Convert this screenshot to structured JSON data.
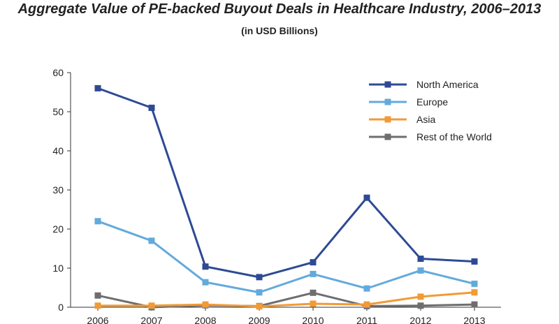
{
  "chart_data": {
    "type": "line",
    "title": "Aggregate Value of PE-backed Buyout Deals in Healthcare Industry, 2006–2013",
    "subtitle": "(in USD Billions)",
    "xlabel": "",
    "ylabel": "",
    "categories": [
      "2006",
      "2007",
      "2008",
      "2009",
      "2010",
      "2011",
      "2012",
      "2013"
    ],
    "y_ticks": [
      "0",
      "10",
      "20",
      "30",
      "40",
      "50",
      "60"
    ],
    "ylim": [
      0,
      60
    ],
    "grid": false,
    "legend_position": "top-right",
    "series": [
      {
        "name": "North America",
        "color": "#2e4a94",
        "marker": "square",
        "values": [
          56,
          51,
          10.4,
          7.7,
          11.5,
          28,
          12.4,
          11.7
        ]
      },
      {
        "name": "Europe",
        "color": "#63aadc",
        "marker": "square",
        "values": [
          22,
          17,
          6.4,
          3.8,
          8.5,
          4.8,
          9.4,
          6
        ]
      },
      {
        "name": "Asia",
        "color": "#f29a36",
        "marker": "square",
        "values": [
          0.4,
          0.4,
          0.7,
          0.2,
          0.9,
          0.7,
          2.7,
          3.8
        ]
      },
      {
        "name": "Rest of the World",
        "color": "#6e6e71",
        "marker": "square",
        "values": [
          3,
          0,
          0.5,
          0.3,
          3.7,
          0.3,
          0.4,
          0.7
        ]
      }
    ]
  }
}
